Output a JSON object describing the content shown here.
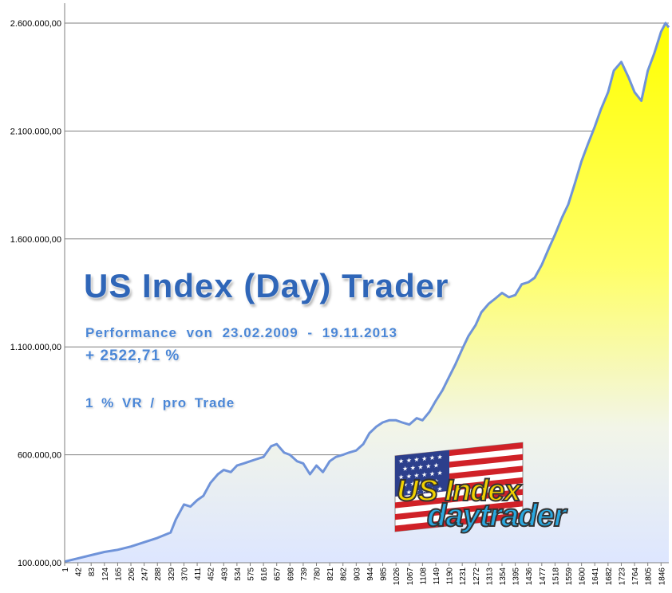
{
  "chart_data": {
    "type": "area",
    "title": "US Index (Day) Trader",
    "annotations": {
      "performance": "Performance  von  23.02.2009 - 19.11.2013",
      "gain": "+ 2522,71 %",
      "risk": "1 % VR / pro Trade"
    },
    "xlabel": "",
    "ylabel": "",
    "ylim": [
      100000,
      2600000
    ],
    "xlim": [
      1,
      1870
    ],
    "y_ticks": [
      "100.000,00",
      "600.000,00",
      "1.100.000,00",
      "1.600.000,00",
      "2.100.000,00",
      "2.600.000,00"
    ],
    "y_tick_values": [
      100000,
      600000,
      1100000,
      1600000,
      2100000,
      2600000
    ],
    "x_ticks": [
      1,
      42,
      83,
      124,
      165,
      206,
      247,
      288,
      329,
      370,
      411,
      452,
      493,
      534,
      575,
      616,
      657,
      698,
      739,
      780,
      821,
      862,
      903,
      944,
      985,
      1026,
      1067,
      1108,
      1149,
      1190,
      1231,
      1272,
      1313,
      1354,
      1395,
      1436,
      1477,
      1518,
      1559,
      1600,
      1641,
      1682,
      1723,
      1764,
      1805,
      1846
    ],
    "grid": true,
    "legend": "none",
    "series": [
      {
        "x": [
          1,
          42,
          83,
          124,
          165,
          206,
          247,
          288,
          329,
          345,
          370,
          390,
          411,
          430,
          452,
          475,
          493,
          515,
          534,
          555,
          575,
          595,
          616,
          640,
          657,
          680,
          698,
          720,
          739,
          760,
          780,
          800,
          821,
          840,
          862,
          880,
          903,
          925,
          944,
          965,
          985,
          1005,
          1026,
          1045,
          1067,
          1090,
          1108,
          1130,
          1149,
          1170,
          1190,
          1210,
          1231,
          1250,
          1272,
          1290,
          1313,
          1330,
          1354,
          1375,
          1395,
          1415,
          1436,
          1455,
          1477,
          1500,
          1518,
          1540,
          1559,
          1580,
          1600,
          1620,
          1641,
          1660,
          1682,
          1700,
          1723,
          1745,
          1764,
          1785,
          1805,
          1825,
          1846,
          1860,
          1870
        ],
        "values": [
          105000,
          120000,
          135000,
          150000,
          160000,
          175000,
          195000,
          215000,
          240000,
          300000,
          370000,
          360000,
          390000,
          410000,
          470000,
          510000,
          530000,
          520000,
          550000,
          560000,
          570000,
          580000,
          590000,
          640000,
          650000,
          610000,
          600000,
          570000,
          560000,
          510000,
          550000,
          520000,
          570000,
          590000,
          600000,
          610000,
          620000,
          650000,
          700000,
          730000,
          750000,
          760000,
          760000,
          750000,
          740000,
          770000,
          760000,
          800000,
          850000,
          900000,
          960000,
          1020000,
          1090000,
          1150000,
          1200000,
          1260000,
          1300000,
          1320000,
          1350000,
          1330000,
          1340000,
          1390000,
          1400000,
          1420000,
          1480000,
          1560000,
          1620000,
          1700000,
          1760000,
          1860000,
          1960000,
          2040000,
          2120000,
          2200000,
          2280000,
          2380000,
          2420000,
          2350000,
          2280000,
          2240000,
          2380000,
          2460000,
          2560000,
          2600000,
          2580000
        ]
      }
    ],
    "colors": {
      "area_top": "#ffff00",
      "area_bottom": "#dde6ff",
      "line": "#6f93d9",
      "grid": "#7f7f7f",
      "title": "#2f66b8",
      "subtitle": "#4a86d6"
    }
  },
  "logo": {
    "top_word": "US Index",
    "bottom_word": "daytrader"
  }
}
